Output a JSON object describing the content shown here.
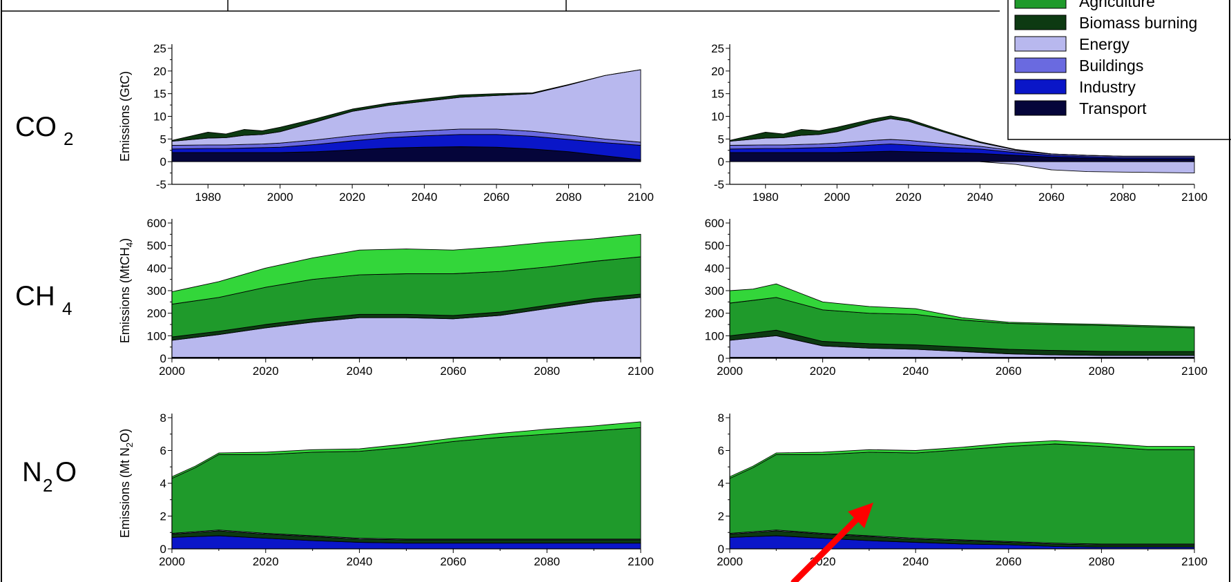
{
  "colors": {
    "Agriculture": "#1f9a2b",
    "Biomass burning": "#0d3a12",
    "Energy": "#b8b8ee",
    "Buildings": "#6a6ae0",
    "Industry": "#0a16c8",
    "Transport": "#05053a",
    "Top green band": "#33d63a",
    "arrow": "#ff0000"
  },
  "legend": {
    "items": [
      {
        "label": "Agriculture",
        "color": "#1f9a2b"
      },
      {
        "label": "Biomass burning",
        "color": "#0d3a12"
      },
      {
        "label": "Energy",
        "color": "#b8b8ee"
      },
      {
        "label": "Buildings",
        "color": "#6a6ae0"
      },
      {
        "label": "Industry",
        "color": "#0a16c8"
      },
      {
        "label": "Transport",
        "color": "#05053a"
      }
    ],
    "placement": "top-right"
  },
  "rows": [
    {
      "gas": "CO",
      "sub": "2",
      "suffix": ""
    },
    {
      "gas": "CH",
      "sub": "4",
      "suffix": ""
    },
    {
      "gas": "N",
      "sub": "2",
      "suffix": "O"
    }
  ],
  "chart_data": [
    {
      "type": "area",
      "row": 0,
      "col": 0,
      "ylabel": "Emissions (GtC)",
      "ylim": [
        -5,
        25
      ],
      "xlim": [
        1970,
        2100
      ],
      "xticks": [
        1980,
        2000,
        2020,
        2040,
        2060,
        2080,
        2100
      ],
      "yticks": [
        -5,
        0,
        5,
        10,
        15,
        20,
        25
      ],
      "x": [
        1970,
        1980,
        1985,
        1990,
        1995,
        2000,
        2010,
        2020,
        2030,
        2040,
        2050,
        2060,
        2070,
        2080,
        2090,
        2100
      ],
      "series": [
        {
          "name": "Transport",
          "values": [
            2,
            2,
            2,
            2,
            2,
            2,
            2.2,
            2.6,
            3,
            3.2,
            3.3,
            3.2,
            2.8,
            2.2,
            1.3,
            0.4
          ]
        },
        {
          "name": "Industry",
          "values": [
            0.8,
            0.9,
            0.9,
            1,
            1.1,
            1.2,
            1.6,
            2,
            2.3,
            2.5,
            2.7,
            2.8,
            2.8,
            2.7,
            2.9,
            3.2
          ]
        },
        {
          "name": "Buildings",
          "values": [
            0.8,
            0.8,
            0.8,
            0.8,
            0.8,
            0.9,
            1,
            1.1,
            1.1,
            1.1,
            1.2,
            1.2,
            1.1,
            1,
            0.8,
            0.7
          ]
        },
        {
          "name": "Energy",
          "values": [
            0.9,
            1.5,
            1.6,
            2,
            2.1,
            2.5,
            4,
            5.4,
            6,
            6.5,
            7,
            7.4,
            8.3,
            11,
            14,
            16
          ]
        },
        {
          "name": "Biomass burning",
          "values": [
            0.2,
            1.3,
            0.8,
            1.3,
            0.8,
            1,
            0.7,
            0.5,
            0.5,
            0.5,
            0.5,
            0.4,
            0.2,
            0.1,
            0,
            0
          ]
        }
      ]
    },
    {
      "type": "area",
      "row": 0,
      "col": 1,
      "ylabel": "",
      "ylim": [
        -5,
        25
      ],
      "xlim": [
        1970,
        2100
      ],
      "xticks": [
        1980,
        2000,
        2020,
        2040,
        2060,
        2080,
        2100
      ],
      "yticks": [
        -5,
        0,
        5,
        10,
        15,
        20,
        25
      ],
      "x": [
        1970,
        1980,
        1985,
        1990,
        1995,
        2000,
        2010,
        2015,
        2020,
        2030,
        2040,
        2050,
        2060,
        2070,
        2080,
        2090,
        2100
      ],
      "series": [
        {
          "name": "Transport",
          "values": [
            2,
            2,
            2,
            2,
            2,
            2,
            2.2,
            2.3,
            2.2,
            2,
            1.8,
            1.4,
            1,
            0.8,
            0.6,
            0.6,
            0.6
          ]
        },
        {
          "name": "Industry",
          "values": [
            0.8,
            0.9,
            0.9,
            1,
            1.1,
            1.2,
            1.5,
            1.6,
            1.5,
            1.2,
            1,
            0.6,
            0.4,
            0.3,
            0.3,
            0.3,
            0.3
          ]
        },
        {
          "name": "Buildings",
          "values": [
            0.8,
            0.8,
            0.8,
            0.8,
            0.8,
            0.9,
            1,
            1,
            1,
            0.8,
            0.6,
            0.4,
            0.3,
            0.3,
            0.3,
            0.3,
            0.3
          ]
        },
        {
          "name": "Energy",
          "values": [
            0.9,
            1.5,
            1.6,
            2,
            2.1,
            2.5,
            4,
            4.6,
            4.2,
            2.5,
            0.8,
            0.2,
            0,
            0,
            0,
            0,
            0
          ]
        },
        {
          "name": "Biomass burning",
          "values": [
            0.2,
            1.3,
            0.8,
            1.3,
            0.8,
            1,
            0.7,
            0.6,
            0.5,
            0.3,
            0.2,
            0.1,
            0,
            0,
            0,
            0,
            0
          ]
        }
      ],
      "negative_area": {
        "name": "Energy",
        "x": [
          2040,
          2050,
          2060,
          2070,
          2080,
          2090,
          2100
        ],
        "values": [
          0,
          -0.6,
          -1.8,
          -2.2,
          -2.3,
          -2.4,
          -2.5
        ]
      }
    },
    {
      "type": "area",
      "row": 1,
      "col": 0,
      "ylabel": "Emissions (MtCH4)",
      "ylim": [
        0,
        600
      ],
      "xlim": [
        2000,
        2100
      ],
      "xticks": [
        2000,
        2020,
        2040,
        2060,
        2080,
        2100
      ],
      "yticks": [
        0,
        100,
        200,
        300,
        400,
        500,
        600
      ],
      "x": [
        2000,
        2010,
        2020,
        2030,
        2040,
        2050,
        2060,
        2070,
        2080,
        2090,
        2100
      ],
      "series": [
        {
          "name": "Transport",
          "values": [
            5,
            5,
            5,
            5,
            5,
            5,
            5,
            5,
            5,
            5,
            5
          ]
        },
        {
          "name": "Energy",
          "values": [
            75,
            100,
            130,
            155,
            175,
            175,
            170,
            185,
            215,
            245,
            265
          ]
        },
        {
          "name": "Biomass burning",
          "values": [
            15,
            15,
            15,
            15,
            15,
            15,
            15,
            15,
            15,
            15,
            15
          ]
        },
        {
          "name": "Agriculture",
          "values": [
            145,
            150,
            165,
            175,
            175,
            180,
            185,
            180,
            170,
            165,
            165
          ]
        },
        {
          "name": "Top green band",
          "values": [
            55,
            70,
            85,
            95,
            110,
            110,
            105,
            110,
            110,
            100,
            100
          ]
        }
      ]
    },
    {
      "type": "area",
      "row": 1,
      "col": 1,
      "ylabel": "",
      "ylim": [
        0,
        600
      ],
      "xlim": [
        2000,
        2100
      ],
      "xticks": [
        2000,
        2020,
        2040,
        2060,
        2080,
        2100
      ],
      "yticks": [
        0,
        100,
        200,
        300,
        400,
        500,
        600
      ],
      "x": [
        2000,
        2005,
        2010,
        2020,
        2030,
        2040,
        2050,
        2060,
        2070,
        2080,
        2090,
        2100
      ],
      "series": [
        {
          "name": "Transport",
          "values": [
            5,
            5,
            5,
            5,
            5,
            5,
            5,
            5,
            5,
            5,
            5,
            5
          ]
        },
        {
          "name": "Energy",
          "values": [
            75,
            85,
            95,
            50,
            40,
            35,
            25,
            15,
            10,
            8,
            8,
            8
          ]
        },
        {
          "name": "Biomass burning",
          "values": [
            20,
            22,
            25,
            20,
            20,
            20,
            20,
            20,
            20,
            18,
            17,
            17
          ]
        },
        {
          "name": "Agriculture",
          "values": [
            145,
            145,
            145,
            140,
            135,
            135,
            120,
            115,
            115,
            115,
            110,
            105
          ]
        },
        {
          "name": "Top green band",
          "values": [
            55,
            50,
            60,
            35,
            30,
            25,
            10,
            5,
            5,
            5,
            5,
            5
          ]
        }
      ]
    },
    {
      "type": "area",
      "row": 2,
      "col": 0,
      "ylabel": "Emissions (Mt N2O)",
      "ylim": [
        0,
        8
      ],
      "xlim": [
        2000,
        2100
      ],
      "xticks": [
        2000,
        2020,
        2040,
        2060,
        2080,
        2100
      ],
      "yticks": [
        0,
        2,
        4,
        6,
        8
      ],
      "x": [
        2000,
        2005,
        2010,
        2020,
        2030,
        2040,
        2050,
        2060,
        2070,
        2080,
        2090,
        2100
      ],
      "series": [
        {
          "name": "Industry",
          "values": [
            0.7,
            0.75,
            0.8,
            0.65,
            0.5,
            0.4,
            0.35,
            0.35,
            0.35,
            0.35,
            0.35,
            0.35
          ]
        },
        {
          "name": "Biomass burning",
          "values": [
            0.2,
            0.25,
            0.3,
            0.25,
            0.25,
            0.2,
            0.2,
            0.2,
            0.2,
            0.2,
            0.2,
            0.2
          ]
        },
        {
          "name": "Energy",
          "values": [
            0.05,
            0.05,
            0.05,
            0.05,
            0.05,
            0.05,
            0.05,
            0.05,
            0.05,
            0.05,
            0.05,
            0.05
          ]
        },
        {
          "name": "Agriculture",
          "values": [
            3.35,
            3.9,
            4.6,
            4.8,
            5.1,
            5.3,
            5.6,
            5.95,
            6.2,
            6.4,
            6.6,
            6.8
          ]
        },
        {
          "name": "Top green band",
          "values": [
            0.1,
            0.1,
            0.1,
            0.15,
            0.15,
            0.15,
            0.2,
            0.2,
            0.25,
            0.3,
            0.3,
            0.35
          ]
        }
      ]
    },
    {
      "type": "area",
      "row": 2,
      "col": 1,
      "ylabel": "",
      "ylim": [
        0,
        8
      ],
      "xlim": [
        2000,
        2100
      ],
      "xticks": [
        2000,
        2020,
        2040,
        2060,
        2080,
        2100
      ],
      "yticks": [
        0,
        2,
        4,
        6,
        8
      ],
      "x": [
        2000,
        2005,
        2010,
        2020,
        2030,
        2040,
        2050,
        2060,
        2070,
        2080,
        2090,
        2100
      ],
      "series": [
        {
          "name": "Industry",
          "values": [
            0.7,
            0.75,
            0.8,
            0.65,
            0.5,
            0.4,
            0.3,
            0.25,
            0.15,
            0.1,
            0.1,
            0.1
          ]
        },
        {
          "name": "Biomass burning",
          "values": [
            0.2,
            0.25,
            0.3,
            0.25,
            0.25,
            0.2,
            0.2,
            0.15,
            0.15,
            0.15,
            0.15,
            0.15
          ]
        },
        {
          "name": "Energy",
          "values": [
            0.05,
            0.05,
            0.05,
            0.05,
            0.05,
            0.05,
            0.05,
            0.05,
            0.05,
            0.05,
            0.05,
            0.05
          ]
        },
        {
          "name": "Agriculture",
          "values": [
            3.35,
            3.9,
            4.6,
            4.8,
            5.1,
            5.2,
            5.5,
            5.8,
            6.05,
            5.95,
            5.75,
            5.75
          ]
        },
        {
          "name": "Top green band",
          "values": [
            0.1,
            0.1,
            0.1,
            0.15,
            0.15,
            0.15,
            0.15,
            0.2,
            0.2,
            0.2,
            0.2,
            0.2
          ]
        }
      ]
    }
  ]
}
